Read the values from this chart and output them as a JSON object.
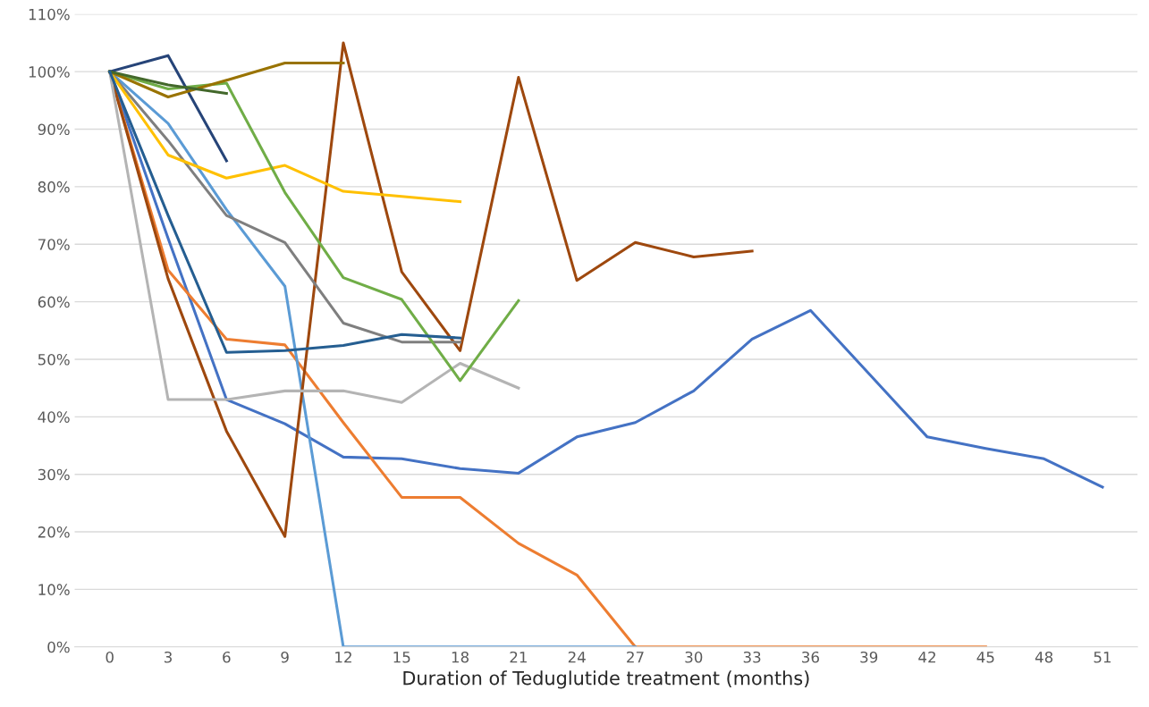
{
  "chart_data": {
    "type": "line",
    "xlabel": "Duration of Teduglutide treatment (months)",
    "categories": [
      "0",
      "3",
      "6",
      "9",
      "12",
      "15",
      "18",
      "21",
      "24",
      "27",
      "30",
      "33",
      "36",
      "39",
      "42",
      "45",
      "48",
      "51"
    ],
    "ylim": [
      0,
      110
    ],
    "yticks": [
      {
        "value": 0,
        "label": "0%"
      },
      {
        "value": 10,
        "label": "10%"
      },
      {
        "value": 20,
        "label": "20%"
      },
      {
        "value": 30,
        "label": "30%"
      },
      {
        "value": 40,
        "label": "40%"
      },
      {
        "value": 50,
        "label": "50%"
      },
      {
        "value": 60,
        "label": "60%"
      },
      {
        "value": 70,
        "label": "70%"
      },
      {
        "value": 80,
        "label": "80%"
      },
      {
        "value": 90,
        "label": "90%"
      },
      {
        "value": 100,
        "label": "100%"
      },
      {
        "value": 110,
        "label": "110%"
      }
    ],
    "grid": "y",
    "marker": "none",
    "line_style": "solid",
    "series": [
      {
        "color": "#4472c4",
        "values": [
          100,
          71,
          43,
          38.8,
          33,
          32.7,
          31,
          30.2,
          36.5,
          39,
          44.5,
          53.5,
          58.5,
          47.5,
          36.5,
          34.5,
          32.7,
          27.8
        ]
      },
      {
        "color": "#ed7d31",
        "values": [
          100,
          65.5,
          53.5,
          52.5,
          39,
          26,
          26,
          18,
          12.5,
          0,
          0,
          0,
          0,
          0,
          0,
          0,
          null,
          null
        ]
      },
      {
        "color": "#5b9bd5",
        "values": [
          100,
          91,
          76,
          62.7,
          0,
          0,
          0,
          0,
          0,
          0,
          null,
          null,
          null,
          null,
          null,
          null,
          null,
          null
        ]
      },
      {
        "color": "#9e480e",
        "values": [
          100,
          64,
          37.5,
          19.2,
          105,
          65.2,
          51.5,
          99,
          63.7,
          70.3,
          67.8,
          68.8,
          null,
          null,
          null,
          null,
          null,
          null
        ]
      },
      {
        "color": "#7f7f7f",
        "values": [
          100,
          88,
          75,
          70.3,
          56.3,
          53,
          53,
          null,
          null,
          null,
          null,
          null,
          null,
          null,
          null,
          null,
          null,
          null
        ]
      },
      {
        "color": "#b4b4b4",
        "values": [
          100,
          43,
          43,
          44.5,
          44.5,
          42.5,
          49.3,
          45,
          null,
          null,
          null,
          null,
          null,
          null,
          null,
          null,
          null,
          null
        ]
      },
      {
        "color": "#ffc000",
        "values": [
          100,
          85.5,
          81.5,
          83.7,
          79.2,
          78.3,
          77.4,
          null,
          null,
          null,
          null,
          null,
          null,
          null,
          null,
          null,
          null,
          null
        ]
      },
      {
        "color": "#70ad47",
        "values": [
          100,
          97,
          98,
          79,
          64.2,
          60.4,
          46.3,
          60.2,
          null,
          null,
          null,
          null,
          null,
          null,
          null,
          null,
          null,
          null
        ]
      },
      {
        "color": "#264478",
        "values": [
          100,
          102.8,
          84.5,
          null,
          null,
          null,
          null,
          null,
          null,
          null,
          null,
          null,
          null,
          null,
          null,
          null,
          null,
          null
        ]
      },
      {
        "color": "#997300",
        "values": [
          100,
          95.6,
          98.5,
          101.5,
          101.5,
          null,
          null,
          null,
          null,
          null,
          null,
          null,
          null,
          null,
          null,
          null,
          null,
          null
        ]
      },
      {
        "color": "#43682b",
        "values": [
          100,
          97.7,
          96.2,
          null,
          null,
          null,
          null,
          null,
          null,
          null,
          null,
          null,
          null,
          null,
          null,
          null,
          null,
          null
        ]
      },
      {
        "color": "#255e91",
        "values": [
          100,
          75,
          51.2,
          51.5,
          52.4,
          54.3,
          53.7,
          null,
          null,
          null,
          null,
          null,
          null,
          null,
          null,
          null,
          null,
          null
        ]
      }
    ]
  }
}
